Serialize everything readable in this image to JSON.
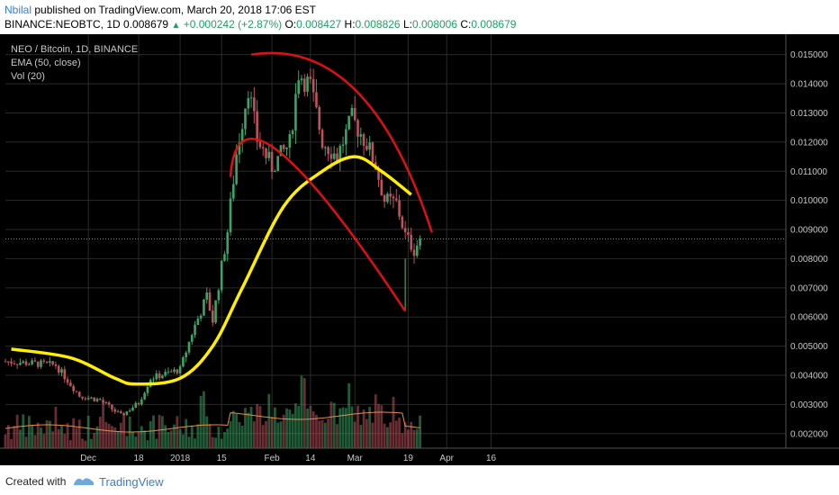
{
  "header": {
    "author": "Nbilal",
    "published_text": "published on TradingView.com, March 20, 2018 17:06 EST",
    "symbol": "BINANCE:NEOBTC, 1D",
    "last": "0.008679",
    "change": "+0.000242 (+2.87%)",
    "o_label": "O:",
    "o_value": "0.008427",
    "h_label": "H:",
    "h_value": "0.008826",
    "l_label": "L:",
    "l_value": "0.008006",
    "c_label": "C:",
    "c_value": "0.008679"
  },
  "legend": {
    "title": "NEO / Bitcoin, 1D, BINANCE",
    "ema": "EMA (50, close)",
    "vol": "Vol (20)"
  },
  "footer": {
    "created_with": "Created with",
    "brand": "TradingView"
  },
  "colors": {
    "background": "#000000",
    "up": "#3aa665",
    "down": "#c0525e",
    "ema": "#ffee00",
    "trend": "#e01010",
    "vol_ma": "#e0904e",
    "grid": "#2a2a2a"
  },
  "chart_data": {
    "type": "candlestick",
    "y_ticks": [
      "0.015000",
      "0.014000",
      "0.013000",
      "0.012000",
      "0.011000",
      "0.010000",
      "0.009000",
      "0.008000",
      "0.007000",
      "0.006000",
      "0.005000",
      "0.004000",
      "0.003000",
      "0.002000"
    ],
    "x_ticks": [
      "Dec",
      "18",
      "2018",
      "15",
      "Feb",
      "14",
      "Mar",
      "19",
      "Apr",
      "16"
    ],
    "ylim": [
      0.0015,
      0.0157
    ],
    "last_price": 0.008679,
    "ema_curve": [
      {
        "date": "2017-11-05",
        "value": 0.0049
      },
      {
        "date": "2017-11-25",
        "value": 0.0046
      },
      {
        "date": "2017-12-10",
        "value": 0.0039
      },
      {
        "date": "2017-12-17",
        "value": 0.0037
      },
      {
        "date": "2018-01-01",
        "value": 0.0039
      },
      {
        "date": "2018-01-12",
        "value": 0.005
      },
      {
        "date": "2018-01-22",
        "value": 0.007
      },
      {
        "date": "2018-02-05",
        "value": 0.0098
      },
      {
        "date": "2018-02-18",
        "value": 0.011
      },
      {
        "date": "2018-03-01",
        "value": 0.0115
      },
      {
        "date": "2018-03-10",
        "value": 0.011
      },
      {
        "date": "2018-03-20",
        "value": 0.0102
      }
    ],
    "trendlines": [
      {
        "points": [
          {
            "date": "2018-01-25",
            "value": 0.015
          },
          {
            "date": "2018-03-01",
            "value": 0.0138
          },
          {
            "date": "2018-03-27",
            "value": 0.0089
          }
        ]
      },
      {
        "points": [
          {
            "date": "2018-01-18",
            "value": 0.0108
          },
          {
            "date": "2018-02-03",
            "value": 0.0117
          },
          {
            "date": "2018-03-18",
            "value": 0.0062
          }
        ]
      }
    ],
    "volume_scale": "relative"
  }
}
